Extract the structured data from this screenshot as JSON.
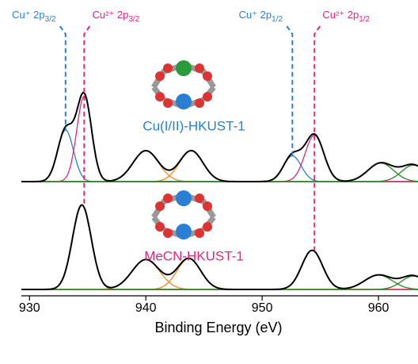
{
  "chart_data": {
    "type": "xps",
    "xlabel": "Binding Energy (eV)",
    "xlim": [
      929.3,
      963.4
    ],
    "xticks": [
      930,
      940,
      950,
      960
    ],
    "panels": [
      {
        "label": "Cu(I/II)-HKUST-1",
        "label_color": "#2a7fd4",
        "baseline_color": "#1f8a1f",
        "peaks": [
          {
            "center": 933.1,
            "height": 0.5,
            "fwhm": 1.6,
            "color": "#2a7fd4",
            "label": {
              "text": "Cu⁺ 2p",
              "sub": "3/2"
            }
          },
          {
            "center": 934.7,
            "height": 0.83,
            "fwhm": 1.5,
            "color": "#e0287d",
            "label": {
              "text": "Cu²⁺ 2p",
              "sub": "3/2"
            }
          },
          {
            "center": 940.0,
            "height": 0.3,
            "fwhm": 2.6,
            "color": "#f08a1c"
          },
          {
            "center": 943.9,
            "height": 0.3,
            "fwhm": 2.4,
            "color": "#f08a1c"
          },
          {
            "center": 952.6,
            "height": 0.25,
            "fwhm": 1.8,
            "color": "#2a7fd4",
            "label": {
              "text": "Cu⁺ 2p",
              "sub": "1/2"
            }
          },
          {
            "center": 954.5,
            "height": 0.45,
            "fwhm": 1.9,
            "color": "#e0287d",
            "label": {
              "text": "Cu²⁺ 2p",
              "sub": "1/2"
            }
          },
          {
            "center": 960.2,
            "height": 0.18,
            "fwhm": 2.6,
            "color": "#1f8a1f"
          },
          {
            "center": 963.0,
            "height": 0.16,
            "fwhm": 2.4,
            "color": "#1f8a1f"
          }
        ]
      },
      {
        "label": "MeCN-HKUST-1",
        "label_color": "#e0287d",
        "baseline_color": "#1f8a1f",
        "peaks": [
          {
            "center": 934.5,
            "height": 0.82,
            "fwhm": 1.9,
            "color": "#e0287d"
          },
          {
            "center": 940.0,
            "height": 0.29,
            "fwhm": 2.8,
            "color": "#f08a1c"
          },
          {
            "center": 943.7,
            "height": 0.3,
            "fwhm": 2.4,
            "color": "#f08a1c"
          },
          {
            "center": 954.3,
            "height": 0.38,
            "fwhm": 2.1,
            "color": "#e0287d"
          },
          {
            "center": 960.0,
            "height": 0.14,
            "fwhm": 2.8,
            "color": "#1f8a1f"
          },
          {
            "center": 963.0,
            "height": 0.13,
            "fwhm": 2.4,
            "color": "#1f8a1f"
          }
        ]
      }
    ]
  }
}
